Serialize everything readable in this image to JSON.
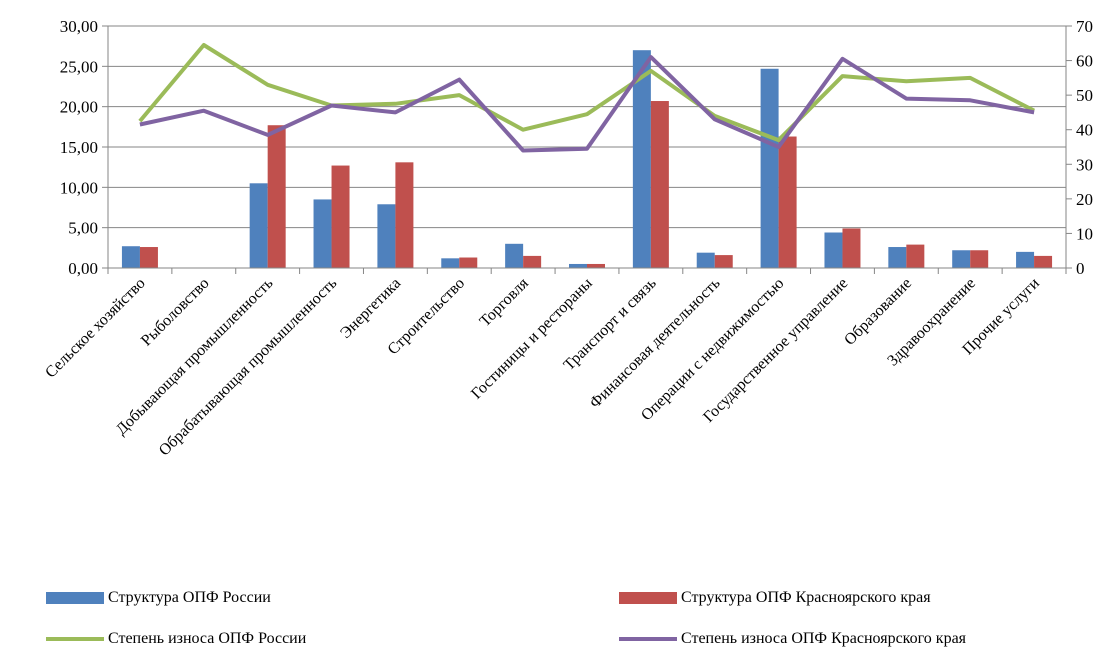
{
  "chart_data": {
    "type": "bar",
    "categories": [
      "Сельское хозяйство",
      "Рыболовство",
      "Добывающая промышленность",
      "Обрабатывающая промышленность",
      "Энергетика",
      "Строительство",
      "Торговля",
      "Гостиницы и рестораны",
      "Транспорт и связь",
      "Финансовая деятельность",
      "Операции с недвижимостью",
      "Государственное управление",
      "Образование",
      "Здравоохранение",
      "Прочие услуги"
    ],
    "y_left": {
      "ylim": [
        0,
        30
      ],
      "ticks": [
        "0,00",
        "5,00",
        "10,00",
        "15,00",
        "20,00",
        "25,00",
        "30,00"
      ]
    },
    "y_right": {
      "ylim": [
        0,
        70
      ],
      "ticks": [
        "0",
        "10",
        "20",
        "30",
        "40",
        "50",
        "60",
        "70"
      ]
    },
    "grid": "horizontal",
    "legend_position": "bottom",
    "series": [
      {
        "name": "Структура ОПФ России",
        "type": "bar",
        "axis": "left",
        "color": "#4f81bd",
        "values": [
          2.7,
          0.05,
          10.5,
          8.5,
          7.9,
          1.2,
          3.0,
          0.5,
          27.0,
          1.9,
          24.7,
          4.4,
          2.6,
          2.2,
          2.0
        ]
      },
      {
        "name": "Структура ОПФ Красноярского края",
        "type": "bar",
        "axis": "left",
        "color": "#c0504d",
        "values": [
          2.6,
          0.05,
          17.7,
          12.7,
          13.1,
          1.3,
          1.5,
          0.5,
          20.7,
          1.6,
          16.3,
          4.9,
          2.9,
          2.2,
          1.5
        ]
      },
      {
        "name": "Степень износа ОПФ России",
        "type": "line",
        "axis": "right",
        "color": "#9bbb59",
        "values": [
          42.5,
          64.5,
          53.0,
          47.0,
          47.5,
          50.0,
          40.0,
          44.5,
          57.0,
          44.0,
          37.0,
          55.5,
          54.0,
          55.0,
          45.5
        ]
      },
      {
        "name": "Степень износа ОПФ Красноярского края",
        "type": "line",
        "axis": "right",
        "color": "#8064a2",
        "values": [
          41.5,
          45.5,
          38.5,
          47.0,
          45.0,
          54.5,
          34.0,
          34.5,
          61.0,
          43.0,
          35.0,
          60.5,
          49.0,
          48.5,
          45.0
        ]
      }
    ]
  }
}
